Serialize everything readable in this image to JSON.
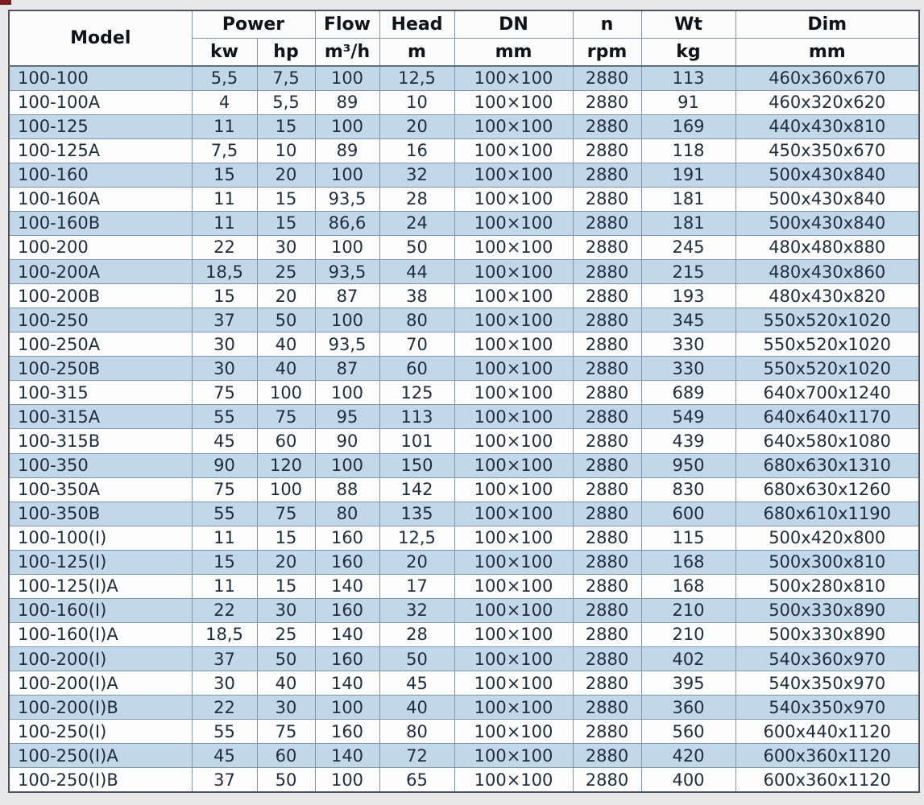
{
  "chart_data": {
    "type": "table",
    "column_groups": [
      {
        "label": "Power",
        "span": [
          "kw",
          "hp"
        ]
      }
    ],
    "columns": [
      {
        "key": "model",
        "header": "Model",
        "unit": ""
      },
      {
        "key": "power_kw",
        "header": "Power",
        "unit": "kw"
      },
      {
        "key": "power_hp",
        "header": "Power",
        "unit": "hp"
      },
      {
        "key": "flow",
        "header": "Flow",
        "unit": "m³/h"
      },
      {
        "key": "head",
        "header": "Head",
        "unit": "m"
      },
      {
        "key": "dn",
        "header": "DN",
        "unit": "mm"
      },
      {
        "key": "n",
        "header": "n",
        "unit": "rpm"
      },
      {
        "key": "wt",
        "header": "Wt",
        "unit": "kg"
      },
      {
        "key": "dim",
        "header": "Dim",
        "unit": "mm"
      }
    ],
    "rows": [
      [
        "100-100",
        "5,5",
        "7,5",
        "100",
        "12,5",
        "100×100",
        "2880",
        "113",
        "460x360x670"
      ],
      [
        "100-100A",
        "4",
        "5,5",
        "89",
        "10",
        "100×100",
        "2880",
        "91",
        "460x320x620"
      ],
      [
        "100-125",
        "11",
        "15",
        "100",
        "20",
        "100×100",
        "2880",
        "169",
        "440x430x810"
      ],
      [
        "100-125A",
        "7,5",
        "10",
        "89",
        "16",
        "100×100",
        "2880",
        "118",
        "450x350x670"
      ],
      [
        "100-160",
        "15",
        "20",
        "100",
        "32",
        "100×100",
        "2880",
        "191",
        "500x430x840"
      ],
      [
        "100-160A",
        "11",
        "15",
        "93,5",
        "28",
        "100×100",
        "2880",
        "181",
        "500x430x840"
      ],
      [
        "100-160B",
        "11",
        "15",
        "86,6",
        "24",
        "100×100",
        "2880",
        "181",
        "500x430x840"
      ],
      [
        "100-200",
        "22",
        "30",
        "100",
        "50",
        "100×100",
        "2880",
        "245",
        "480x480x880"
      ],
      [
        "100-200A",
        "18,5",
        "25",
        "93,5",
        "44",
        "100×100",
        "2880",
        "215",
        "480x430x860"
      ],
      [
        "100-200B",
        "15",
        "20",
        "87",
        "38",
        "100×100",
        "2880",
        "193",
        "480x430x820"
      ],
      [
        "100-250",
        "37",
        "50",
        "100",
        "80",
        "100×100",
        "2880",
        "345",
        "550x520x1020"
      ],
      [
        "100-250A",
        "30",
        "40",
        "93,5",
        "70",
        "100×100",
        "2880",
        "330",
        "550x520x1020"
      ],
      [
        "100-250B",
        "30",
        "40",
        "87",
        "60",
        "100×100",
        "2880",
        "330",
        "550x520x1020"
      ],
      [
        "100-315",
        "75",
        "100",
        "100",
        "125",
        "100×100",
        "2880",
        "689",
        "640x700x1240"
      ],
      [
        "100-315A",
        "55",
        "75",
        "95",
        "113",
        "100×100",
        "2880",
        "549",
        "640x640x1170"
      ],
      [
        "100-315B",
        "45",
        "60",
        "90",
        "101",
        "100×100",
        "2880",
        "439",
        "640x580x1080"
      ],
      [
        "100-350",
        "90",
        "120",
        "100",
        "150",
        "100×100",
        "2880",
        "950",
        "680x630x1310"
      ],
      [
        "100-350A",
        "75",
        "100",
        "88",
        "142",
        "100×100",
        "2880",
        "830",
        "680x630x1260"
      ],
      [
        "100-350B",
        "55",
        "75",
        "80",
        "135",
        "100×100",
        "2880",
        "600",
        "680x610x1190"
      ],
      [
        "100-100(I)",
        "11",
        "15",
        "160",
        "12,5",
        "100×100",
        "2880",
        "115",
        "500x420x800"
      ],
      [
        "100-125(I)",
        "15",
        "20",
        "160",
        "20",
        "100×100",
        "2880",
        "168",
        "500x300x810"
      ],
      [
        "100-125(I)A",
        "11",
        "15",
        "140",
        "17",
        "100×100",
        "2880",
        "168",
        "500x280x810"
      ],
      [
        "100-160(I)",
        "22",
        "30",
        "160",
        "32",
        "100×100",
        "2880",
        "210",
        "500x330x890"
      ],
      [
        "100-160(I)A",
        "18,5",
        "25",
        "140",
        "28",
        "100×100",
        "2880",
        "210",
        "500x330x890"
      ],
      [
        "100-200(I)",
        "37",
        "50",
        "160",
        "50",
        "100×100",
        "2880",
        "402",
        "540x360x970"
      ],
      [
        "100-200(I)A",
        "30",
        "40",
        "140",
        "45",
        "100×100",
        "2880",
        "395",
        "540x350x970"
      ],
      [
        "100-200(I)B",
        "22",
        "30",
        "100",
        "40",
        "100×100",
        "2880",
        "360",
        "540x350x970"
      ],
      [
        "100-250(I)",
        "55",
        "75",
        "160",
        "80",
        "100×100",
        "2880",
        "560",
        "600x440x1120"
      ],
      [
        "100-250(I)A",
        "45",
        "60",
        "140",
        "72",
        "100×100",
        "2880",
        "420",
        "600x360x1120"
      ],
      [
        "100-250(I)B",
        "37",
        "50",
        "100",
        "65",
        "100×100",
        "2880",
        "400",
        "600x360x1120"
      ]
    ],
    "layout": {
      "alternating_rows": true,
      "first_data_row_highlighted": true,
      "grid": true
    }
  },
  "colors": {
    "row_highlight": "#c3d7ea",
    "row_plain": "#fdfdfd",
    "header_bg": "#fcfcfc",
    "grid_line": "#8494a8",
    "outer_border": "#49545f",
    "text": "#1e2d3c",
    "header_text": "#0f1419",
    "page_bg": "#e8e8e8",
    "corner_artifact": "#7a2020"
  }
}
